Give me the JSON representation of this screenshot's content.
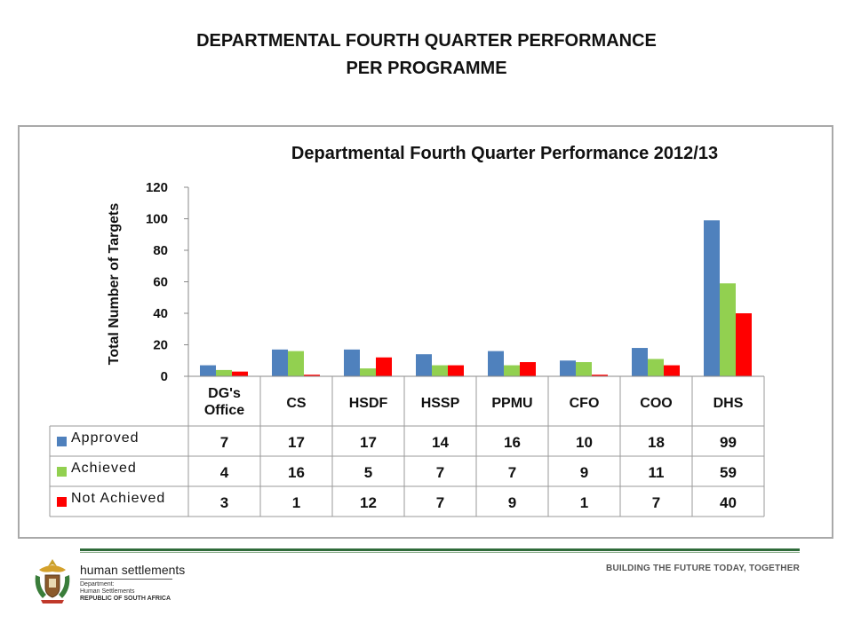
{
  "slide": {
    "title_line1": "DEPARTMENTAL FOURTH QUARTER PERFORMANCE",
    "title_line2": "PER  PROGRAMME"
  },
  "chart_data": {
    "type": "bar",
    "title": "Departmental  Fourth Quarter Performance 2012/13",
    "ylabel": "Total Number of Targets",
    "xlabel": "",
    "ylim": [
      0,
      120
    ],
    "yticks": [
      0,
      20,
      40,
      60,
      80,
      100,
      120
    ],
    "categories": [
      "DG's Office",
      "CS",
      "HSDF",
      "HSSP",
      "PPMU",
      "CFO",
      "COO",
      "DHS"
    ],
    "series": [
      {
        "name": "Approved",
        "color": "#4f81bd",
        "values": [
          7,
          17,
          17,
          14,
          16,
          10,
          18,
          99
        ]
      },
      {
        "name": "Achieved",
        "color": "#92d050",
        "values": [
          4,
          16,
          5,
          7,
          7,
          9,
          11,
          59
        ]
      },
      {
        "name": "Not Achieved",
        "color": "#ff0000",
        "values": [
          3,
          1,
          12,
          7,
          9,
          1,
          7,
          40
        ]
      }
    ],
    "grid": false,
    "legend": "data-table"
  },
  "footer": {
    "org_name": "human settlements",
    "dept_line1": "Department:",
    "dept_line2": "Human Settlements",
    "dept_line3": "REPUBLIC OF SOUTH AFRICA",
    "slogan": "BUILDING THE FUTURE TODAY, TOGETHER"
  },
  "colors": {
    "approved": "#4f81bd",
    "achieved": "#92d050",
    "not_achieved": "#ff0000",
    "footer_green": "#2f6b3a"
  }
}
